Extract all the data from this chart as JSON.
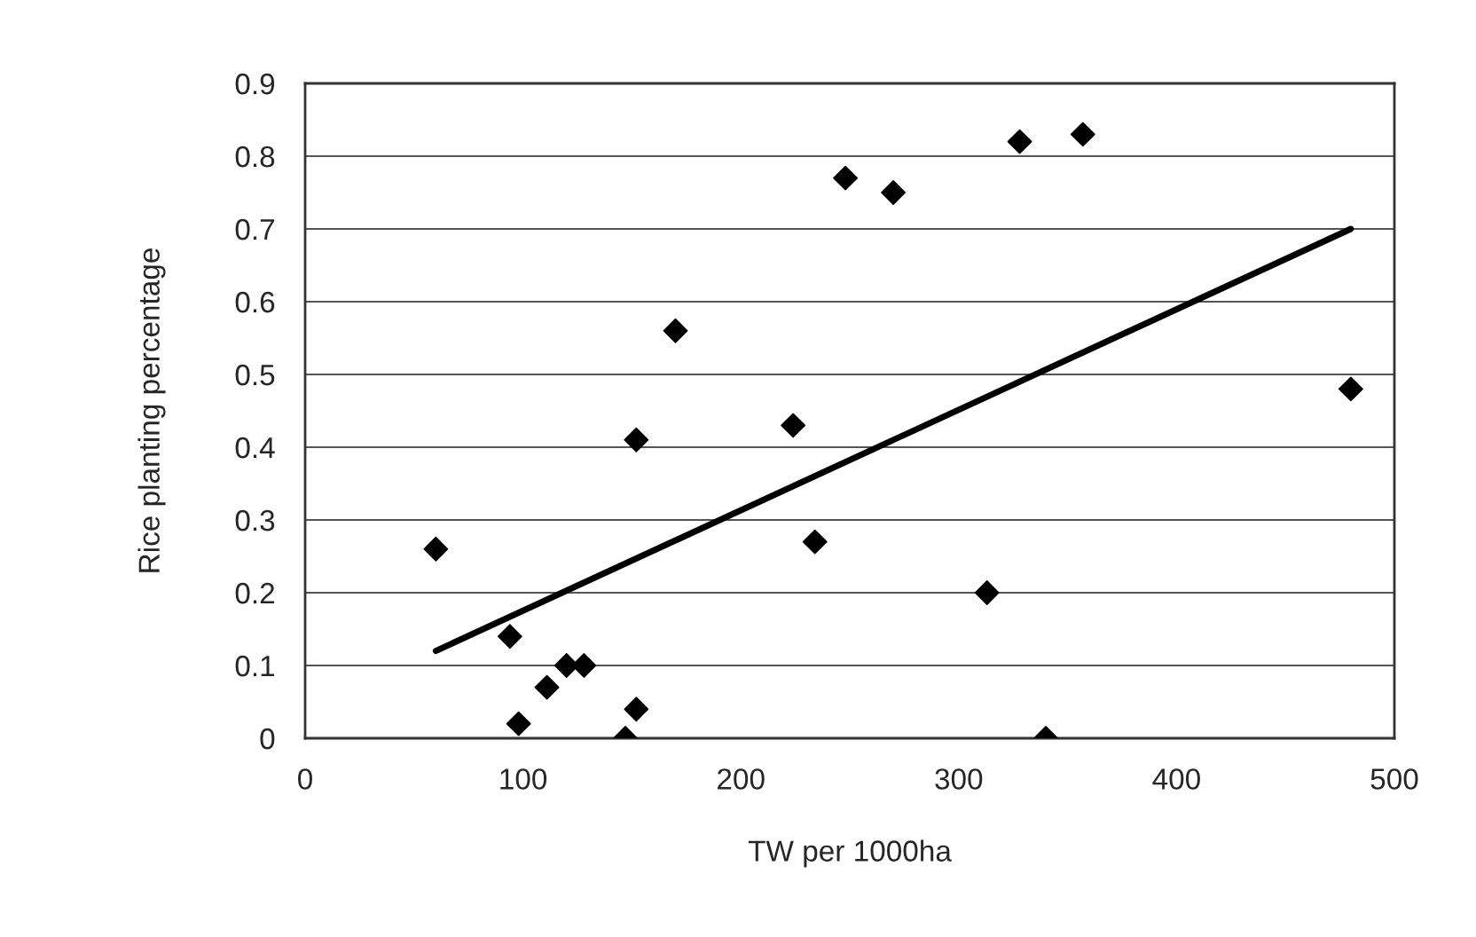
{
  "chart_data": {
    "type": "scatter",
    "xlabel": "TW per 1000ha",
    "ylabel": "Rice planting percentage",
    "series": [
      {
        "color": "#000000",
        "marker": "diamond",
        "x": [
          60,
          94,
          98,
          111,
          120,
          128,
          147,
          152,
          152,
          170,
          224,
          234,
          248,
          270,
          313,
          328,
          340,
          357,
          480
        ],
        "values": [
          0.26,
          0.14,
          0.02,
          0.07,
          0.1,
          0.1,
          0.0,
          0.04,
          0.41,
          0.56,
          0.43,
          0.27,
          0.77,
          0.75,
          0.2,
          0.82,
          0.0,
          0.83,
          0.48
        ]
      },
      {
        "type": "line",
        "color": "#000000",
        "marker": "none",
        "x": [
          60,
          480
        ],
        "values": [
          0.12,
          0.7
        ]
      }
    ],
    "xlim": [
      0,
      500
    ],
    "xticks": [
      0,
      100,
      200,
      300,
      400,
      500
    ],
    "ylim": [
      0,
      0.9
    ],
    "yticks": [
      {
        "value": 0,
        "label": "0"
      },
      0.1,
      0.2,
      0.3,
      0.4,
      0.5,
      0.6,
      0.7,
      0.8,
      0.9
    ],
    "grid": "y",
    "legend": false
  }
}
